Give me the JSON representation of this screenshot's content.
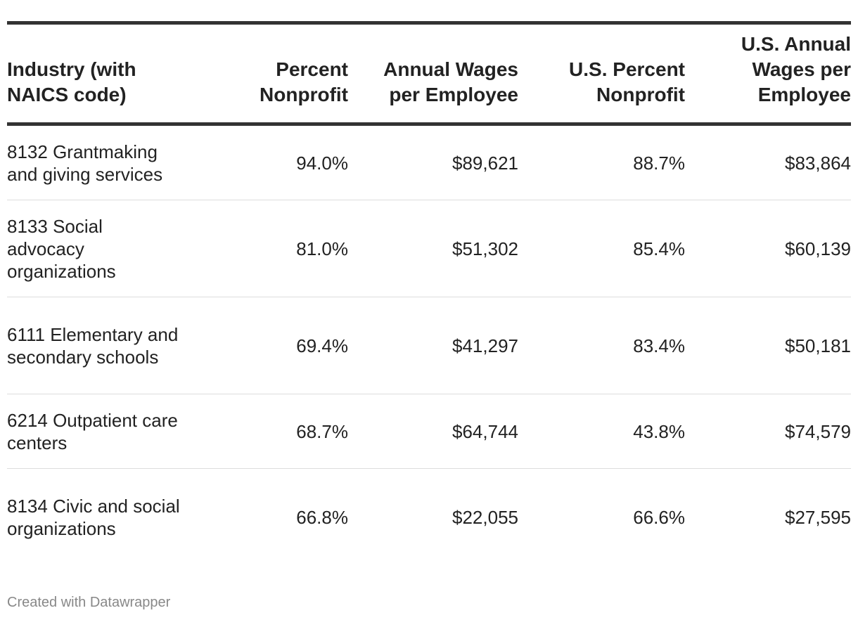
{
  "chart_data": {
    "type": "table",
    "columns": [
      "Industry  (with NAICS code)",
      "Percent Nonprofit",
      "Annual Wages per Employee",
      "U.S. Percent Nonprofit",
      "U.S. Annual Wages per Employee"
    ],
    "rows": [
      [
        "8132 Grantmaking and giving services",
        "94.0%",
        "$89,621",
        "88.7%",
        "$83,864"
      ],
      [
        "8133 Social advocacy organizations",
        "81.0%",
        "$51,302",
        "85.4%",
        "$60,139"
      ],
      [
        "6111 Elementary and secondary schools",
        "69.4%",
        "$41,297",
        "83.4%",
        "$50,181"
      ],
      [
        "6214 Outpatient care centers",
        "68.7%",
        "$64,744",
        "43.8%",
        "$74,579"
      ],
      [
        "8134 Civic and social organizations",
        "66.8%",
        "$22,055",
        "66.6%",
        "$27,595"
      ]
    ]
  },
  "footer": {
    "credit": "Created with Datawrapper"
  },
  "colors": {
    "text": "#222222",
    "rule": "#333333",
    "row_divider": "#dddddd",
    "footer_text": "#888888"
  }
}
